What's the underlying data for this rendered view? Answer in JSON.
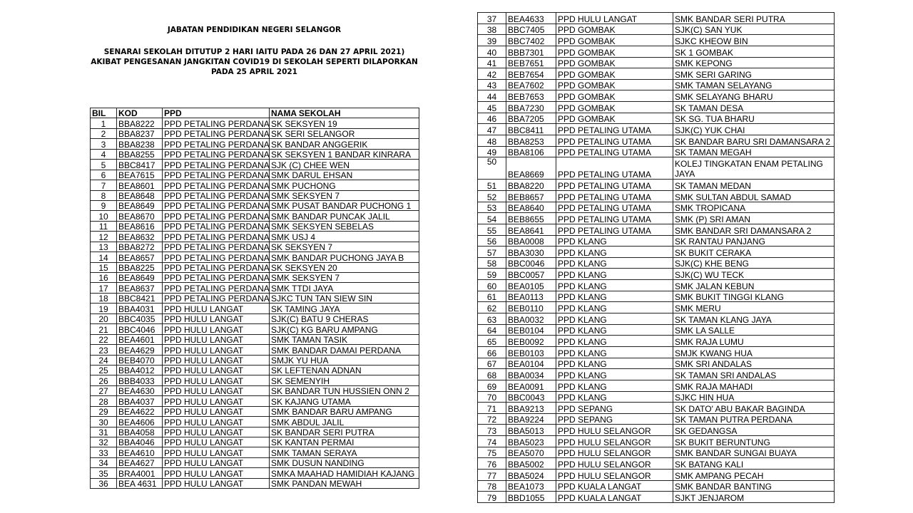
{
  "document": {
    "title": "JABATAN PENDIDIKAN NEGERI SELANGOR",
    "subtitle": "SENARAI SEKOLAH  DITUTUP 2 HARI  IAITU PADA 26 DAN 27 APRIL 2021) AKIBAT PENGESANAN JANGKITAN COVID19 DI SEKOLAH SEPERTI DILAPORKAN PADA 25 APRIL 2021",
    "columns": [
      "BIL",
      "KOD",
      "PPD",
      "NAMA SEKOLAH"
    ],
    "rows_left": [
      [
        "1",
        "BBA8222",
        "PPD PETALING PERDANA",
        "SK SEKSYEN 19"
      ],
      [
        "2",
        "BBA8237",
        "PPD PETALING PERDANA",
        "SK SERI SELANGOR"
      ],
      [
        "3",
        "BBA8238",
        "PPD PETALING PERDANA",
        "SK BANDAR ANGGERIK"
      ],
      [
        "4",
        "BBA8255",
        "PPD PETALING PERDANA",
        "SK SEKSYEN 1 BANDAR KINRARA"
      ],
      [
        "5",
        "BBC8417",
        "PPD PETALING PERDANA",
        "SJK (C) CHEE WEN"
      ],
      [
        "6",
        "BEA7615",
        "PPD PETALING PERDANA",
        "SMK DARUL EHSAN"
      ],
      [
        "7",
        "BEA8601",
        "PPD PETALING PERDANA",
        "SMK PUCHONG"
      ],
      [
        "8",
        "BEA8648",
        "PPD PETALING PERDANA",
        "SMK SEKSYEN 7"
      ],
      [
        "9",
        "BEA8649",
        "PPD PETALING PERDANA",
        "SMK PUSAT BANDAR PUCHONG 1"
      ],
      [
        "10",
        "BEA8670",
        "PPD PETALING PERDANA",
        "SMK BANDAR PUNCAK JALIL"
      ],
      [
        "11",
        "BEA8616",
        "PPD PETALING PERDANA",
        "SMK SEKSYEN SEBELAS"
      ],
      [
        "12",
        "BEA8632",
        "PPD PETALING PERDANA",
        "SMK USJ 4"
      ],
      [
        "13",
        "BBA8272",
        "PPD PETALING PERDANA",
        "SK SEKSYEN 7"
      ],
      [
        "14",
        "BEA8657",
        "PPD PETALING PERDANA",
        "SMK BANDAR PUCHONG JAYA B"
      ],
      [
        "15",
        "BBA8225",
        "PPD PETALING PERDANA",
        "SK SEKSYEN 20"
      ],
      [
        "16",
        "BEA8649",
        "PPD PETALING PERDANA",
        "SMK SEKSYEN 7"
      ],
      [
        "17",
        "BEA8637",
        "PPD PETALING PERDANA",
        "SMK TTDI JAYA"
      ],
      [
        "18",
        "BBC8421",
        "PPD PETALING PERDANA",
        "SJKC TUN TAN SIEW SIN"
      ],
      [
        "19",
        "BBA4031",
        "PPD HULU LANGAT",
        "SK TAMING JAYA"
      ],
      [
        "20",
        "BBC4035",
        "PPD HULU LANGAT",
        "SJK(C) BATU 9 CHERAS"
      ],
      [
        "21",
        "BBC4046",
        "PPD HULU LANGAT",
        "SJK(C) KG BARU AMPANG"
      ],
      [
        "22",
        "BEA4601",
        "PPD HULU LANGAT",
        "SMK TAMAN TASIK"
      ],
      [
        "23",
        "BEA4629",
        "PPD HULU LANGAT",
        "SMK BANDAR DAMAI PERDANA"
      ],
      [
        "24",
        "BEB4070",
        "PPD HULU LANGAT",
        "SMJK YU HUA"
      ],
      [
        "25",
        "BBA4012",
        "PPD HULU LANGAT",
        "SK LEFTENAN ADNAN"
      ],
      [
        "26",
        "BBB4033",
        "PPD HULU LANGAT",
        "SK SEMENYIH"
      ],
      [
        "27",
        "BEA4630",
        "PPD HULU LANGAT",
        "SK BANDAR TUN HUSSIEN ONN 2"
      ],
      [
        "28",
        "BBA4037",
        "PPD HULU LANGAT",
        "SK KAJANG UTAMA"
      ],
      [
        "29",
        "BEA4622",
        "PPD HULU LANGAT",
        "SMK BANDAR BARU AMPANG"
      ],
      [
        "30",
        "BEA4606",
        "PPD HULU LANGAT",
        "SMK ABDUL JALIL"
      ],
      [
        "31",
        "BBA4058",
        "PPD HULU LANGAT",
        "SK BANDAR SERI PUTRA"
      ],
      [
        "32",
        "BBA4046",
        "PPD HULU LANGAT",
        "SK KANTAN PERMAI"
      ],
      [
        "33",
        "BEA4610",
        "PPD HULU LANGAT",
        "SMK TAMAN SERAYA"
      ],
      [
        "34",
        "BEA4627",
        "PPD HULU LANGAT",
        "SMK DUSUN NANDING"
      ],
      [
        "35",
        "BRA4001",
        "PPD HULU LANGAT",
        "SMKA MAAHAD HAMIDIAH KAJANG"
      ],
      [
        "36",
        "BEA 4631",
        "PPD HULU LANGAT",
        "SMK PANDAN MEWAH"
      ]
    ],
    "rows_right": [
      [
        "37",
        "BEA4633",
        "PPD HULU LANGAT",
        "SMK BANDAR SERI PUTRA"
      ],
      [
        "38",
        "BBC7405",
        "PPD GOMBAK",
        "SJK(C) SAN YUK"
      ],
      [
        "39",
        "BBC7402",
        "PPD GOMBAK",
        "SJKC KHEOW BIN"
      ],
      [
        "40",
        "BBB7301",
        "PPD GOMBAK",
        "SK 1 GOMBAK"
      ],
      [
        "41",
        "BEB7651",
        "PPD GOMBAK",
        "SMK KEPONG"
      ],
      [
        "42",
        "BEB7654",
        "PPD GOMBAK",
        "SMK SERI GARING"
      ],
      [
        "43",
        "BEA7602",
        "PPD GOMBAK",
        "SMK TAMAN SELAYANG"
      ],
      [
        "44",
        "BEB7653",
        "PPD GOMBAK",
        "SMK SELAYANG BHARU"
      ],
      [
        "45",
        "BBA7230",
        "PPD GOMBAK",
        "SK TAMAN DESA"
      ],
      [
        "46",
        "BBA7205",
        "PPD GOMBAK",
        "SK SG. TUA BHARU"
      ],
      [
        "47",
        "BBC8411",
        "PPD PETALING UTAMA",
        "SJK(C) YUK CHAI"
      ],
      [
        "48",
        "BBA8253",
        "PPD PETALING UTAMA",
        "SK BANDAR BARU SRI DAMANSARA 2"
      ],
      [
        "49",
        "BBA8106",
        "PPD PETALING UTAMA",
        "SK TAMAN MEGAH"
      ],
      [
        "50",
        "BEA8669",
        "PPD PETALING UTAMA",
        "KOLEJ TINGKATAN ENAM PETALING JAYA"
      ],
      [
        "51",
        "BBA8220",
        "PPD PETALING UTAMA",
        "SK TAMAN MEDAN"
      ],
      [
        "52",
        "BEB8657",
        "PPD PETALING UTAMA",
        "SMK SULTAN ABDUL SAMAD"
      ],
      [
        "53",
        "BEA8640",
        "PPD PETALING UTAMA",
        "SMK TROPICANA"
      ],
      [
        "54",
        "BEB8655",
        "PPD PETALING UTAMA",
        "SMK (P) SRI AMAN"
      ],
      [
        "55",
        "BEA8641",
        "PPD PETALING UTAMA",
        "SMK BANDAR SRI DAMANSARA 2"
      ],
      [
        "56",
        "BBA0008",
        "PPD KLANG",
        "SK RANTAU PANJANG"
      ],
      [
        "57",
        "BBA3030",
        "PPD KLANG",
        "SK BUKIT CERAKA"
      ],
      [
        "58",
        "BBC0046",
        "PPD KLANG",
        "SJK(C) KHE BENG"
      ],
      [
        "59",
        "BBC0057",
        "PPD KLANG",
        "SJK(C) WU TECK"
      ],
      [
        "60",
        "BEA0105",
        "PPD KLANG",
        "SMK JALAN KEBUN"
      ],
      [
        "61",
        "BEA0113",
        "PPD KLANG",
        "SMK BUKIT TINGGI KLANG"
      ],
      [
        "62",
        "BEB0110",
        "PPD KLANG",
        "SMK MERU"
      ],
      [
        "63",
        "BBA0032",
        "PPD KLANG",
        "SK TAMAN KLANG JAYA"
      ],
      [
        "64",
        "BEB0104",
        "PPD KLANG",
        "SMK LA SALLE"
      ],
      [
        "65",
        "BEB0092",
        "PPD KLANG",
        "SMK RAJA LUMU"
      ],
      [
        "66",
        "BEB0103",
        "PPD KLANG",
        "SMJK KWANG HUA"
      ],
      [
        "67",
        "BEA0104",
        "PPD KLANG",
        "SMK SRI ANDALAS"
      ],
      [
        "68",
        "BBA0034",
        "PPD KLANG",
        "SK TAMAN SRI ANDALAS"
      ],
      [
        "69",
        "BEA0091",
        "PPD KLANG",
        "SMK RAJA MAHADI"
      ],
      [
        "70",
        "BBC0043",
        "PPD KLANG",
        "SJKC HIN HUA"
      ],
      [
        "71",
        "BBA9213",
        "PPD SEPANG",
        "SK DATO' ABU BAKAR BAGINDA"
      ],
      [
        "72",
        "BBA9224",
        "PPD SEPANG",
        "SK TAMAN PUTRA PERDANA"
      ],
      [
        "73",
        "BBA5013",
        "PPD HULU SELANGOR",
        "SK GEDANGSA"
      ],
      [
        "74",
        "BBA5023",
        "PPD HULU SELANGOR",
        "SK BUKIT BERUNTUNG"
      ],
      [
        "75",
        "BEA5070",
        "PPD HULU SELANGOR",
        "SMK BANDAR SUNGAI BUAYA"
      ],
      [
        "76",
        "BBA5002",
        "PPD HULU SELANGOR",
        "SK BATANG KALI"
      ],
      [
        "77",
        "BBA5024",
        "PPD HULU SELANGOR",
        "SMK AMPANG PECAH"
      ],
      [
        "78",
        "BEA1073",
        "PPD KUALA LANGAT",
        "SMK BANDAR BANTING"
      ],
      [
        "79",
        "BBD1055",
        "PPD KUALA LANGAT",
        "SJKT JENJAROM"
      ]
    ]
  }
}
